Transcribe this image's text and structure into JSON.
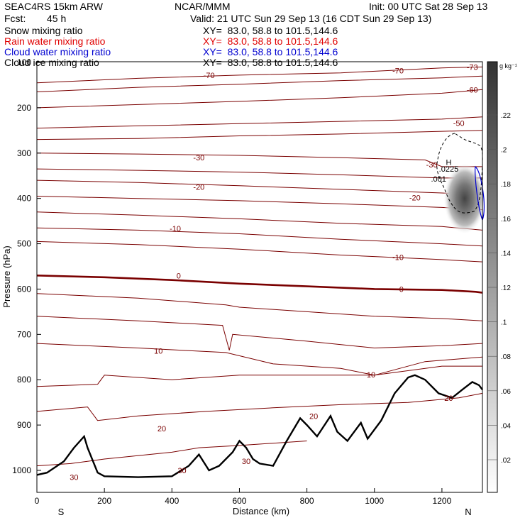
{
  "header": {
    "model": "SEAC4RS 15km ARW",
    "org": "NCAR/MMM",
    "init": "Init: 00 UTC Sat 28 Sep 13",
    "fcst_label": "Fcst:",
    "fcst_value": "45 h",
    "valid": "Valid: 21 UTC Sun 29 Sep 13 (16 CDT Sun 29 Sep 13)",
    "fields": [
      {
        "name": "Snow mixing ratio",
        "xy": "XY=  83.0, 58.8 to 101.5,144.6",
        "color": "#000000"
      },
      {
        "name": "Rain water mixing ratio",
        "xy": "XY=  83.0, 58.8 to 101.5,144.6",
        "color": "#e00000"
      },
      {
        "name": "Cloud water mixing ratio",
        "xy": "XY=  83.0, 58.8 to 101.5,144.6",
        "color": "#0000d0"
      },
      {
        "name": "Cloud ice mixing ratio",
        "xy": "XY=  83.0, 58.8 to 101.5,144.6",
        "color": "#000000"
      }
    ]
  },
  "chart_data": {
    "type": "cross-section contour",
    "xlabel": "Distance (km)",
    "ylabel": "Pressure (hPa)",
    "xlim": [
      0,
      1320
    ],
    "ylim": [
      1050,
      100
    ],
    "x_ticks": [
      "0",
      "200",
      "400",
      "600",
      "800",
      "1000",
      "1200"
    ],
    "y_ticks": [
      "100",
      "200",
      "300",
      "400",
      "500",
      "600",
      "700",
      "800",
      "900",
      "1000"
    ],
    "end_labels": {
      "left": "S",
      "right": "N"
    },
    "temperature_contour_labels": [
      {
        "text": "-73",
        "x": 1290,
        "p": 110
      },
      {
        "text": "-70",
        "x": 510,
        "p": 128
      },
      {
        "text": "-70",
        "x": 1070,
        "p": 118
      },
      {
        "text": "-60",
        "x": 1290,
        "p": 160
      },
      {
        "text": "-50",
        "x": 1250,
        "p": 234
      },
      {
        "text": "-30",
        "x": 480,
        "p": 310
      },
      {
        "text": "-30",
        "x": 1170,
        "p": 325
      },
      {
        "text": "-20",
        "x": 480,
        "p": 375
      },
      {
        "text": "-20",
        "x": 1120,
        "p": 398
      },
      {
        "text": "-10",
        "x": 410,
        "p": 466
      },
      {
        "text": "-10",
        "x": 1070,
        "p": 530
      },
      {
        "text": "0",
        "x": 420,
        "p": 570
      },
      {
        "text": "0",
        "x": 1080,
        "p": 600
      },
      {
        "text": "10",
        "x": 360,
        "p": 736
      },
      {
        "text": "10",
        "x": 990,
        "p": 789
      },
      {
        "text": "20",
        "x": 370,
        "p": 908
      },
      {
        "text": "20",
        "x": 820,
        "p": 880
      },
      {
        "text": "20",
        "x": 1220,
        "p": 840
      },
      {
        "text": "30",
        "x": 110,
        "p": 1015
      },
      {
        "text": "30",
        "x": 430,
        "p": 1000
      },
      {
        "text": "30",
        "x": 620,
        "p": 980
      }
    ],
    "cloud_labels": [
      {
        "text": "H",
        "x": 1220,
        "p": 320
      },
      {
        "text": ".0225",
        "x": 1220,
        "p": 335
      },
      {
        "text": ".001",
        "x": 1190,
        "p": 357
      }
    ],
    "shading_scale": {
      "unit": "g kg⁻¹",
      "labels": [
        ".22",
        ".2",
        ".18",
        ".16",
        ".14",
        ".12",
        ".1",
        ".08",
        ".06",
        ".04",
        ".02"
      ]
    },
    "terrain": [
      [
        0,
        1010
      ],
      [
        30,
        1005
      ],
      [
        80,
        980
      ],
      [
        110,
        950
      ],
      [
        140,
        925
      ],
      [
        150,
        950
      ],
      [
        180,
        1005
      ],
      [
        200,
        1013
      ],
      [
        300,
        1015
      ],
      [
        400,
        1013
      ],
      [
        450,
        990
      ],
      [
        480,
        965
      ],
      [
        510,
        1000
      ],
      [
        540,
        990
      ],
      [
        580,
        960
      ],
      [
        600,
        935
      ],
      [
        620,
        950
      ],
      [
        640,
        975
      ],
      [
        660,
        985
      ],
      [
        700,
        990
      ],
      [
        740,
        935
      ],
      [
        780,
        885
      ],
      [
        800,
        900
      ],
      [
        830,
        925
      ],
      [
        870,
        880
      ],
      [
        890,
        915
      ],
      [
        920,
        935
      ],
      [
        960,
        895
      ],
      [
        980,
        930
      ],
      [
        1020,
        890
      ],
      [
        1060,
        830
      ],
      [
        1100,
        795
      ],
      [
        1120,
        790
      ],
      [
        1150,
        800
      ],
      [
        1190,
        830
      ],
      [
        1230,
        840
      ],
      [
        1260,
        822
      ],
      [
        1290,
        805
      ],
      [
        1310,
        812
      ],
      [
        1320,
        822
      ]
    ]
  },
  "colors": {
    "temperature": "#7a0000",
    "freezing_line": "#7a0000",
    "terrain": "#000000",
    "cloud_water": "#0000d0"
  }
}
